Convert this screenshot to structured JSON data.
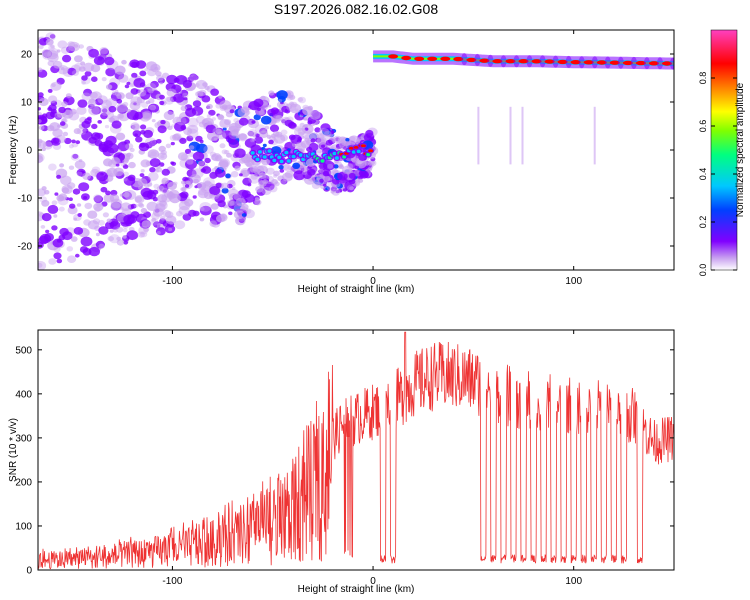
{
  "title": "S197.2026.082.16.02.G08",
  "chart_data": [
    {
      "type": "heatmap",
      "xlabel": "Height of straight line (km)",
      "ylabel": "Frequency (Hz)",
      "xlim": [
        -167,
        150
      ],
      "ylim": [
        -25,
        25
      ],
      "xticks": [
        -100,
        0,
        100
      ],
      "yticks": [
        -20,
        -10,
        0,
        10,
        20
      ],
      "ridge_left": {
        "description": "diffuse scattered energy below 0 km, concentrating toward 0 Hz",
        "x": [
          -55,
          -45,
          -35,
          -25,
          -15,
          -5,
          0
        ],
        "y": [
          -1,
          -1.5,
          -1,
          -2,
          -0.5,
          0,
          -1
        ]
      },
      "ridge_right": {
        "description": "strong narrow line above 0 km",
        "x": [
          0,
          10,
          20,
          40,
          60,
          80,
          100,
          120,
          150
        ],
        "y": [
          19.5,
          19.5,
          19,
          19,
          18.5,
          18.5,
          18.3,
          18.2,
          18
        ]
      },
      "colorbar": {
        "label": "Normalized spectral amplitude",
        "range": [
          0,
          1
        ],
        "ticks": [
          "0.0",
          "0.2",
          "0.4",
          "0.6",
          "0.8"
        ],
        "colors": [
          "#ffffff",
          "#c8a0f0",
          "#8000ff",
          "#0040ff",
          "#00c8ff",
          "#00ff80",
          "#80ff00",
          "#ffff00",
          "#ff8000",
          "#ff0000",
          "#ff40c0"
        ]
      }
    },
    {
      "type": "line",
      "xlabel": "Height of straight line (km)",
      "ylabel": "SNR (10 * v/v)",
      "xlim": [
        -167,
        150
      ],
      "ylim": [
        0,
        545
      ],
      "xticks": [
        -100,
        0,
        100
      ],
      "yticks": [
        0,
        100,
        200,
        300,
        400,
        500
      ],
      "series": [
        {
          "name": "SNR",
          "color": "#ee3333",
          "envelope_x": [
            -167,
            -140,
            -120,
            -100,
            -80,
            -60,
            -40,
            -25,
            -20,
            -15,
            -10,
            0,
            10,
            20,
            30,
            40,
            50,
            60,
            70,
            80,
            90,
            100,
            110,
            120,
            130,
            140,
            150
          ],
          "envelope_y": [
            22,
            25,
            35,
            45,
            60,
            85,
            120,
            200,
            300,
            330,
            340,
            360,
            380,
            420,
            440,
            440,
            430,
            410,
            390,
            380,
            380,
            375,
            370,
            360,
            350,
            290,
            300
          ],
          "dropouts_x": [
            5,
            10,
            55,
            60,
            65,
            70,
            75,
            80,
            85,
            90,
            95,
            100,
            105,
            110,
            115,
            120,
            125,
            133
          ],
          "dropout_level": 25,
          "spike": {
            "x": 16,
            "y": 540
          }
        }
      ]
    }
  ]
}
